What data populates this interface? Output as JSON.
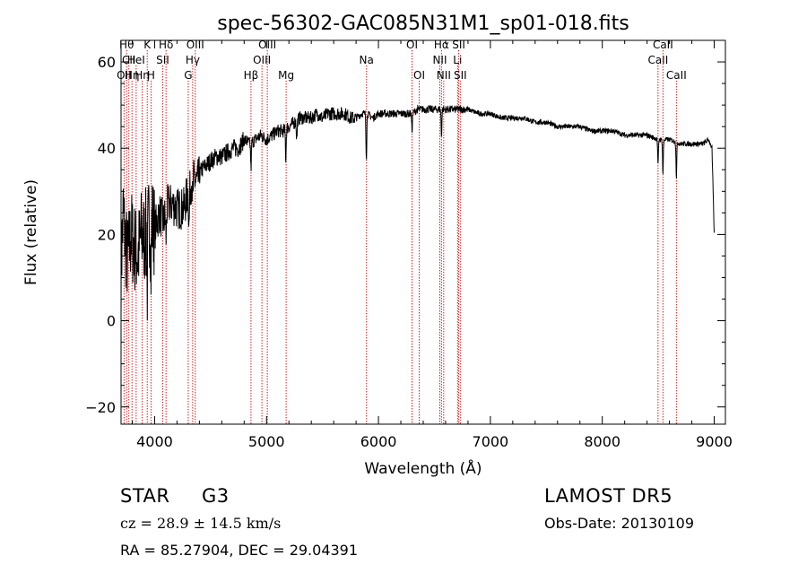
{
  "chart_data": {
    "type": "line",
    "title": "spec-56302-GAC085N31M1_sp01-018.fits",
    "xlabel": "Wavelength (Å)",
    "ylabel": "Flux (relative)",
    "xlim": [
      3700,
      9100
    ],
    "ylim": [
      -24,
      65
    ],
    "x_ticks": [
      4000,
      5000,
      6000,
      7000,
      8000,
      9000
    ],
    "y_ticks": [
      -20,
      0,
      20,
      40,
      60
    ],
    "grid": false,
    "line_color": "#000000",
    "marker_color": "#cc2222",
    "spectrum_anchors": {
      "x": [
        3700,
        3720,
        3740,
        3760,
        3790,
        3820,
        3850,
        3880,
        3910,
        3940,
        3970,
        4000,
        4040,
        4080,
        4120,
        4160,
        4200,
        4260,
        4300,
        4340,
        4380,
        4420,
        4460,
        4500,
        4550,
        4600,
        4650,
        4700,
        4750,
        4800,
        4850,
        4900,
        4950,
        5000,
        5050,
        5100,
        5150,
        5200,
        5250,
        5300,
        5350,
        5400,
        5450,
        5500,
        5550,
        5600,
        5650,
        5700,
        5750,
        5800,
        5850,
        5900,
        5950,
        6000,
        6050,
        6100,
        6150,
        6200,
        6250,
        6300,
        6350,
        6400,
        6450,
        6500,
        6550,
        6600,
        6650,
        6700,
        6750,
        6800,
        6900,
        7000,
        7100,
        7200,
        7300,
        7400,
        7500,
        7600,
        7700,
        7800,
        7900,
        8000,
        8100,
        8200,
        8300,
        8400,
        8500,
        8600,
        8700,
        8800,
        8900,
        8950,
        8980,
        9000
      ],
      "y": [
        12,
        25,
        18,
        14,
        20,
        17,
        15,
        20,
        19,
        22,
        24,
        21,
        25,
        23,
        27,
        27,
        26,
        26,
        30,
        33,
        32,
        35,
        36,
        37,
        38,
        38,
        39,
        40,
        40,
        42,
        41,
        42,
        43,
        42,
        43,
        44,
        44,
        45,
        46,
        47,
        47,
        47,
        48,
        47,
        48,
        48,
        48,
        48,
        47,
        47,
        48,
        48,
        47,
        48,
        48,
        48,
        48,
        48,
        48,
        48,
        49,
        49,
        49,
        49,
        49,
        49,
        49,
        49,
        49,
        49,
        48,
        48,
        47,
        47,
        47,
        46,
        46,
        45,
        45,
        45,
        44,
        44,
        44,
        43,
        43,
        43,
        42,
        42,
        41,
        41,
        41,
        42,
        40,
        20
      ]
    },
    "absorption_features": [
      {
        "x": 3934,
        "depth": 14
      },
      {
        "x": 3968,
        "depth": 12
      },
      {
        "x": 4102,
        "depth": 6
      },
      {
        "x": 4308,
        "depth": 9
      },
      {
        "x": 4340,
        "depth": 6
      },
      {
        "x": 4861,
        "depth": 6
      },
      {
        "x": 5172,
        "depth": 7
      },
      {
        "x": 5270,
        "depth": 4
      },
      {
        "x": 5892,
        "depth": 10
      },
      {
        "x": 6300,
        "depth": 4
      },
      {
        "x": 6563,
        "depth": 6
      },
      {
        "x": 8498,
        "depth": 6
      },
      {
        "x": 8542,
        "depth": 8
      },
      {
        "x": 8662,
        "depth": 8
      }
    ],
    "line_markers": [
      {
        "x": 3727,
        "label": "OII",
        "row": 3
      },
      {
        "x": 3750,
        "label": "Hθ",
        "row": 1
      },
      {
        "x": 3770,
        "label": "CII",
        "row": 2
      },
      {
        "x": 3798,
        "label": "Hη",
        "row": 3
      },
      {
        "x": 3835,
        "label": "HeI",
        "row": 2
      },
      {
        "x": 3889,
        "label": "Hη",
        "row": 3
      },
      {
        "x": 3934,
        "label": "K",
        "row": 1
      },
      {
        "x": 3968,
        "label": "H",
        "row": 3
      },
      {
        "x": 4072,
        "label": "SII",
        "row": 2
      },
      {
        "x": 4102,
        "label": "Hδ",
        "row": 1
      },
      {
        "x": 4300,
        "label": "G",
        "row": 3
      },
      {
        "x": 4340,
        "label": "Hγ",
        "row": 2
      },
      {
        "x": 4363,
        "label": "OIII",
        "row": 1
      },
      {
        "x": 4861,
        "label": "Hβ",
        "row": 3
      },
      {
        "x": 4959,
        "label": "OIII",
        "row": 2
      },
      {
        "x": 5007,
        "label": "OIII",
        "row": 1
      },
      {
        "x": 5175,
        "label": "Mg",
        "row": 3
      },
      {
        "x": 5893,
        "label": "Na",
        "row": 2
      },
      {
        "x": 6300,
        "label": "OI",
        "row": 1
      },
      {
        "x": 6364,
        "label": "OI",
        "row": 3
      },
      {
        "x": 6548,
        "label": "NII",
        "row": 2
      },
      {
        "x": 6563,
        "label": "Hα",
        "row": 1
      },
      {
        "x": 6583,
        "label": "NII",
        "row": 3
      },
      {
        "x": 6707,
        "label": "Li",
        "row": 2
      },
      {
        "x": 6717,
        "label": "SII",
        "row": 1
      },
      {
        "x": 6731,
        "label": "SII",
        "row": 3
      },
      {
        "x": 8498,
        "label": "CaII",
        "row": 2
      },
      {
        "x": 8542,
        "label": "CaII",
        "row": 1
      },
      {
        "x": 8662,
        "label": "CaII",
        "row": 3
      }
    ]
  },
  "info": {
    "object_class": "STAR",
    "subclass": "G3",
    "redshift_text": "cz = 28.9 ± 14.5 km/s",
    "coords_text": "RA =  85.27904, DEC =  29.04391",
    "survey": "LAMOST DR5",
    "obs_date": "Obs-Date: 20130109"
  }
}
